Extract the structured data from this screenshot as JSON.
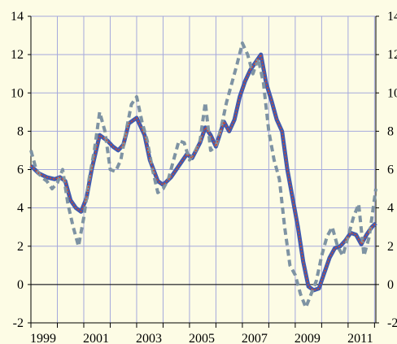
{
  "colors": {
    "background": "#fdfce5",
    "grid": "#a5a9dc",
    "blue_series": "#3f5ab0",
    "red_series": "#d14a2b",
    "dashed_series": "#7e93a3"
  },
  "chart_data": {
    "type": "line",
    "title": "",
    "xlabel": "",
    "ylabel": "",
    "xlim": [
      1999.0,
      2012.05
    ],
    "ylim": [
      -2,
      14
    ],
    "y_ticks": [
      -2,
      0,
      2,
      4,
      6,
      8,
      10,
      12,
      14
    ],
    "y_tick_labels_left": [
      "-2",
      "0",
      "2",
      "4",
      "6",
      "8",
      "10",
      "12",
      "14"
    ],
    "y_tick_labels_right": [
      "-2",
      "0",
      "2",
      "4",
      "6",
      "8",
      "10",
      "12",
      "14"
    ],
    "x_tick_labels": [
      "1999",
      "2001",
      "2003",
      "2005",
      "2007",
      "2009",
      "2011"
    ],
    "x_tick_positions": [
      1999,
      2001,
      2003,
      2005,
      2007,
      2009,
      2011
    ],
    "grid": true,
    "series": [
      {
        "style": "solid",
        "x": [
          1999.0,
          1999.3,
          1999.6,
          1999.9,
          2000.1,
          2000.3,
          2000.5,
          2000.7,
          2000.9,
          2001.1,
          2001.3,
          2001.6,
          2001.9,
          2002.1,
          2002.3,
          2002.5,
          2002.7,
          2003.0,
          2003.3,
          2003.5,
          2003.8,
          2004.0,
          2004.3,
          2004.6,
          2004.9,
          2005.1,
          2005.4,
          2005.6,
          2005.8,
          2006.0,
          2006.3,
          2006.5,
          2006.7,
          2006.9,
          2007.1,
          2007.3,
          2007.5,
          2007.7,
          2007.9,
          2008.1,
          2008.3,
          2008.5,
          2008.7,
          2008.9,
          2009.1,
          2009.3,
          2009.5,
          2009.7,
          2009.9,
          2010.1,
          2010.3,
          2010.5,
          2010.7,
          2010.9,
          2011.1,
          2011.3,
          2011.5,
          2011.7,
          2011.9,
          2012.05
        ],
        "y": [
          6.2,
          5.8,
          5.6,
          5.5,
          5.6,
          5.4,
          4.4,
          4.0,
          3.8,
          4.5,
          6.0,
          7.8,
          7.5,
          7.2,
          7.0,
          7.3,
          8.4,
          8.7,
          7.8,
          6.5,
          5.4,
          5.2,
          5.6,
          6.2,
          6.8,
          6.6,
          7.4,
          8.2,
          7.8,
          7.2,
          8.5,
          8.0,
          8.6,
          9.8,
          10.6,
          11.2,
          11.6,
          12.0,
          10.5,
          9.6,
          8.6,
          8.0,
          6.0,
          4.5,
          3.0,
          1.2,
          -0.1,
          -0.3,
          -0.2,
          0.6,
          1.4,
          1.9,
          2.0,
          2.3,
          2.7,
          2.6,
          2.1,
          2.6,
          3.0,
          3.2
        ]
      },
      {
        "style": "dashed",
        "x": [
          1999.0,
          1999.2,
          1999.4,
          1999.6,
          1999.8,
          2000.0,
          2000.2,
          2000.4,
          2000.6,
          2000.8,
          2001.0,
          2001.2,
          2001.4,
          2001.6,
          2001.8,
          2002.0,
          2002.2,
          2002.4,
          2002.6,
          2002.8,
          2003.0,
          2003.2,
          2003.4,
          2003.6,
          2003.8,
          2004.0,
          2004.2,
          2004.4,
          2004.6,
          2004.8,
          2005.0,
          2005.2,
          2005.4,
          2005.6,
          2005.8,
          2006.0,
          2006.2,
          2006.4,
          2006.6,
          2006.8,
          2007.0,
          2007.2,
          2007.4,
          2007.6,
          2007.8,
          2008.0,
          2008.2,
          2008.4,
          2008.6,
          2008.8,
          2009.0,
          2009.2,
          2009.4,
          2009.6,
          2009.8,
          2010.0,
          2010.2,
          2010.4,
          2010.6,
          2010.8,
          2011.0,
          2011.2,
          2011.4,
          2011.6,
          2011.8,
          2012.05
        ],
        "y": [
          7.0,
          6.0,
          5.6,
          5.4,
          5.0,
          5.3,
          6.0,
          4.2,
          3.0,
          2.0,
          3.5,
          5.5,
          7.0,
          9.0,
          8.0,
          6.0,
          5.9,
          6.5,
          8.0,
          9.4,
          9.8,
          8.5,
          7.5,
          6.0,
          4.8,
          5.0,
          5.5,
          6.5,
          7.5,
          7.4,
          6.5,
          6.9,
          7.5,
          9.5,
          7.0,
          7.2,
          8.2,
          9.5,
          10.5,
          11.5,
          12.6,
          12.0,
          11.0,
          11.8,
          10.5,
          8.0,
          6.5,
          5.5,
          3.0,
          1.0,
          0.5,
          -0.5,
          -1.2,
          -0.5,
          0.2,
          1.5,
          2.5,
          3.0,
          2.0,
          1.5,
          2.5,
          3.5,
          4.2,
          1.5,
          2.5,
          5.0
        ]
      },
      {
        "style": "dotted",
        "x": [
          1999.0,
          1999.3,
          1999.6,
          1999.9,
          2000.1,
          2000.3,
          2000.5,
          2000.7,
          2000.9,
          2001.1,
          2001.3,
          2001.6,
          2001.9,
          2002.1,
          2002.3,
          2002.5,
          2002.7,
          2003.0,
          2003.3,
          2003.5,
          2003.8,
          2004.0,
          2004.3,
          2004.6,
          2004.9,
          2005.1,
          2005.4,
          2005.6,
          2005.8,
          2006.0,
          2006.3,
          2006.5,
          2006.7,
          2006.9,
          2007.1,
          2007.3,
          2007.5,
          2007.7,
          2007.9,
          2008.1,
          2008.3,
          2008.5,
          2008.7,
          2008.9,
          2009.1,
          2009.3,
          2009.5,
          2009.7,
          2009.9,
          2010.1,
          2010.3,
          2010.5,
          2010.7,
          2010.9,
          2011.1,
          2011.3,
          2011.5,
          2011.7,
          2011.9,
          2012.05
        ],
        "y": [
          6.2,
          5.8,
          5.6,
          5.5,
          5.6,
          5.4,
          4.4,
          4.0,
          3.8,
          4.5,
          6.0,
          7.8,
          7.5,
          7.2,
          7.0,
          7.3,
          8.4,
          8.7,
          7.8,
          6.5,
          5.4,
          5.2,
          5.6,
          6.2,
          6.8,
          6.6,
          7.4,
          8.2,
          7.8,
          7.2,
          8.5,
          8.0,
          8.6,
          9.8,
          10.6,
          11.2,
          11.6,
          12.0,
          10.5,
          9.6,
          8.6,
          8.0,
          6.0,
          4.5,
          3.0,
          1.2,
          -0.1,
          -0.3,
          -0.2,
          0.6,
          1.4,
          1.9,
          2.0,
          2.3,
          2.7,
          2.6,
          2.1,
          2.6,
          3.0,
          3.2
        ]
      }
    ]
  }
}
